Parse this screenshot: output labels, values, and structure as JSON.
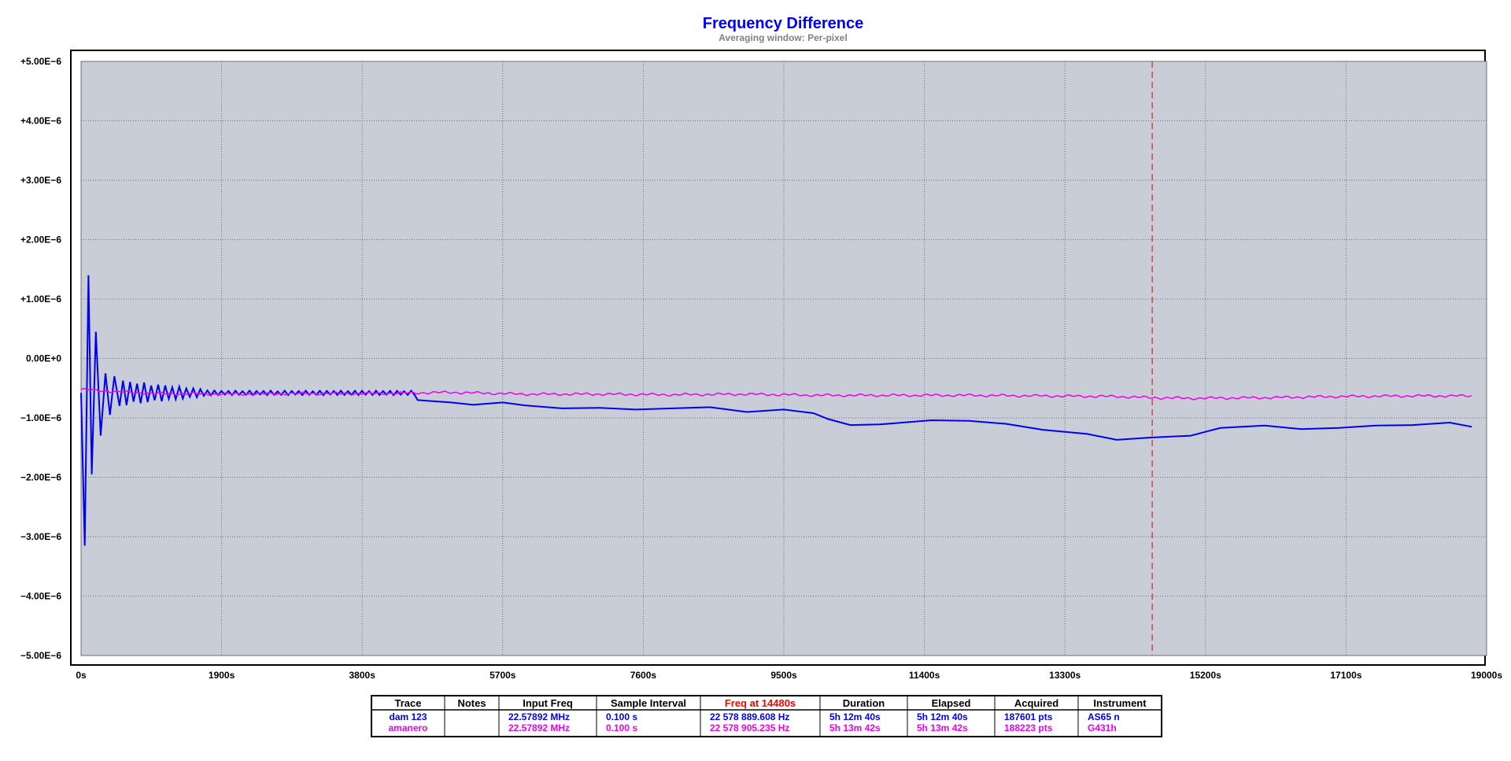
{
  "colors": {
    "plot_bg": "#c8cdd8",
    "grid": "#707070",
    "frame": "#000000",
    "title": "#0000ff",
    "subtitle": "#808080",
    "zero_label": "#0000cc",
    "cursor": "#e02020",
    "table_highlight": "#ff0000"
  },
  "chart_data": {
    "type": "line",
    "title": "Frequency Difference",
    "subtitle": "Averaging window: Per-pixel",
    "xlabel": "",
    "ylabel": "",
    "xlim": [
      0,
      19000
    ],
    "ylim": [
      -5e-06,
      5e-06
    ],
    "x_ticks": [
      0,
      1900,
      3800,
      5700,
      7600,
      9500,
      11400,
      13300,
      15200,
      17100,
      19000
    ],
    "x_tick_labels": [
      "0s",
      "1900s",
      "3800s",
      "5700s",
      "7600s",
      "9500s",
      "11400s",
      "13300s",
      "15200s",
      "17100s",
      "19000s"
    ],
    "y_ticks": [
      5e-06,
      4e-06,
      3e-06,
      2e-06,
      1e-06,
      0,
      -1e-06,
      -2e-06,
      -3e-06,
      -4e-06,
      -5e-06
    ],
    "y_tick_labels": [
      "+5.00E−6",
      "+4.00E−6",
      "+3.00E−6",
      "+2.00E−6",
      "+1.00E−6",
      "0.00E+0",
      "−1.00E−6",
      "−2.00E−6",
      "−3.00E−6",
      "−4.00E−6",
      "−5.00E−6"
    ],
    "grid": true,
    "cursor_x": 14480,
    "series": [
      {
        "name": "dam 123",
        "color": "#0000ee",
        "oscillation": {
          "x_start": 0,
          "x_end": 4550,
          "center": -5.8e-07,
          "period": 95,
          "decay_from": 1.18e-06,
          "decay_to": 1.5e-07,
          "early_peaks": [
            [
              50,
              -3.15e-06
            ],
            [
              100,
              1.4e-06
            ],
            [
              145,
              -1.95e-06
            ],
            [
              200,
              4.5e-07
            ],
            [
              265,
              -1.3e-06
            ],
            [
              330,
              -2.5e-07
            ],
            [
              390,
              -9.5e-07
            ],
            [
              450,
              -3e-07
            ],
            [
              520,
              -8e-07
            ]
          ]
        },
        "x": [
          4550,
          5000,
          5300,
          5700,
          6000,
          6500,
          7000,
          7500,
          8000,
          8500,
          9000,
          9500,
          9900,
          10100,
          10400,
          10800,
          11500,
          12000,
          12500,
          13000,
          13600,
          14000,
          14480,
          15000,
          15400,
          16000,
          16500,
          17000,
          17500,
          18000,
          18500,
          18800
        ],
        "y": [
          -7e-07,
          -7.4e-07,
          -7.8e-07,
          -7.4e-07,
          -7.9e-07,
          -8.4e-07,
          -8.3e-07,
          -8.6e-07,
          -8.4e-07,
          -8.2e-07,
          -9e-07,
          -8.6e-07,
          -9.2e-07,
          -1.02e-06,
          -1.12e-06,
          -1.11e-06,
          -1.04e-06,
          -1.05e-06,
          -1.1e-06,
          -1.2e-06,
          -1.27e-06,
          -1.37e-06,
          -1.33e-06,
          -1.3e-06,
          -1.17e-06,
          -1.13e-06,
          -1.19e-06,
          -1.17e-06,
          -1.13e-06,
          -1.12e-06,
          -1.08e-06,
          -1.15e-06
        ]
      },
      {
        "name": "amanero",
        "color": "#ee00ee",
        "noise_amplitude": 2.5e-08,
        "x": [
          0,
          500,
          1000,
          2000,
          3000,
          4000,
          5000,
          6000,
          7000,
          8000,
          9000,
          10000,
          11000,
          12000,
          13000,
          14000,
          14480,
          15000,
          16000,
          17000,
          18000,
          18800
        ],
        "y": [
          -5.2e-07,
          -5.6e-07,
          -5.9e-07,
          -6e-07,
          -5.9e-07,
          -5.9e-07,
          -5.7e-07,
          -6e-07,
          -6e-07,
          -6.1e-07,
          -6e-07,
          -6.2e-07,
          -6.2e-07,
          -6.2e-07,
          -6.3e-07,
          -6.4e-07,
          -6.6e-07,
          -6.7e-07,
          -6.6e-07,
          -6.4e-07,
          -6.3e-07,
          -6.3e-07
        ]
      }
    ]
  },
  "table": {
    "headers": [
      "Trace",
      "Notes",
      "Input Freq",
      "Sample Interval",
      "Freq at 14480s",
      "Duration",
      "Elapsed",
      "Acquired",
      "Instrument"
    ],
    "rows": [
      {
        "color": "#0000ee",
        "cells": [
          "dam 123",
          "",
          "22.57892 MHz",
          "0.100 s",
          "22 578 889.608 Hz",
          "5h 12m 40s",
          "5h 12m 40s",
          "187601 pts",
          "AS65 n"
        ]
      },
      {
        "color": "#ee00ee",
        "cells": [
          "amanero",
          "",
          "22.57892 MHz",
          "0.100 s",
          "22 578 905.235 Hz",
          "5h 13m 42s",
          "5h 13m 42s",
          "188223 pts",
          "G431h"
        ]
      }
    ]
  }
}
